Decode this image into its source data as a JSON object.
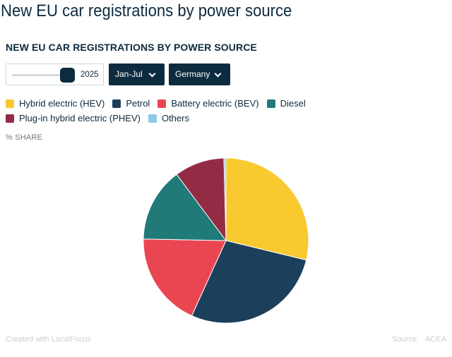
{
  "page": {
    "title": "New EU car registrations by power source"
  },
  "chart": {
    "title": "NEW EU CAR REGISTRATIONS BY POWER SOURCE",
    "unit_label": "% SHARE"
  },
  "controls": {
    "year_slider_value": "2025",
    "period_dropdown": "Jan-Jul",
    "country_dropdown": "Germany"
  },
  "legend": [
    {
      "label": "Hybrid electric (HEV)",
      "color": "#f9c930"
    },
    {
      "label": "Petrol",
      "color": "#1c3f5c"
    },
    {
      "label": "Battery electric (BEV)",
      "color": "#ea4652"
    },
    {
      "label": "Diesel",
      "color": "#1f7a78"
    },
    {
      "label": "Plug-in hybrid electric (PHEV)",
      "color": "#942b45"
    },
    {
      "label": "Others",
      "color": "#8ec9ea"
    }
  ],
  "footer": {
    "credit": "Created with LocalFocus",
    "source_label": "Source:",
    "source_value": "ACEA"
  },
  "chart_data": {
    "type": "pie",
    "title": "NEW EU CAR REGISTRATIONS BY POWER SOURCE",
    "unit": "% SHARE",
    "categories": [
      "Hybrid electric (HEV)",
      "Petrol",
      "Battery electric (BEV)",
      "Diesel",
      "Plug-in hybrid electric (PHEV)",
      "Others"
    ],
    "values": [
      28.8,
      28.0,
      18.5,
      14.5,
      9.8,
      0.4
    ],
    "colors": [
      "#f9c930",
      "#1c3f5c",
      "#ea4652",
      "#1f7a78",
      "#942b45",
      "#8ec9ea"
    ],
    "legend_position": "top"
  }
}
